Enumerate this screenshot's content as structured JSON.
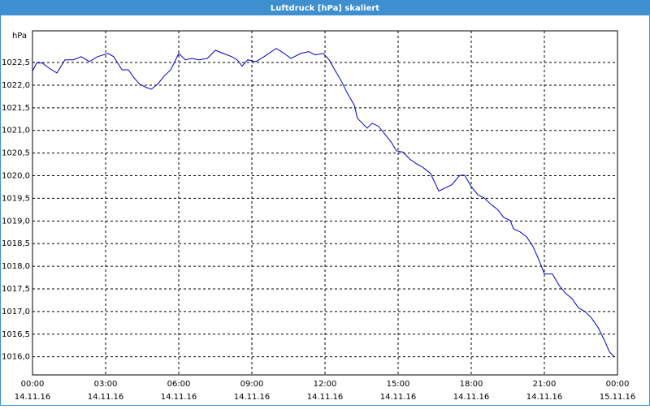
{
  "chart_data": {
    "type": "line",
    "title": "Luftdruck [hPa] skaliert",
    "ylabel": "hPa",
    "xlim": [
      0,
      24
    ],
    "ylim": [
      1015.6,
      1023.2
    ],
    "xticks": [
      {
        "value": 0,
        "label": "00:00"
      },
      {
        "value": 3,
        "label": "03:00"
      },
      {
        "value": 6,
        "label": "06:00"
      },
      {
        "value": 9,
        "label": "09:00"
      },
      {
        "value": 12,
        "label": "12:00"
      },
      {
        "value": 15,
        "label": "15:00"
      },
      {
        "value": 18,
        "label": "18:00"
      },
      {
        "value": 21,
        "label": "21:00"
      },
      {
        "value": 24,
        "label": "00:00"
      }
    ],
    "xtick_dates": [
      "14.11.16",
      "14.11.16",
      "14.11.16",
      "14.11.16",
      "14.11.16",
      "14.11.16",
      "14.11.16",
      "14.11.16",
      "15.11.16"
    ],
    "yticks": [
      {
        "value": 1016,
        "label": "1016,0"
      },
      {
        "value": 1016.5,
        "label": "1016,5"
      },
      {
        "value": 1017,
        "label": "1017,0"
      },
      {
        "value": 1017.5,
        "label": "1017,5"
      },
      {
        "value": 1018,
        "label": "1018,0"
      },
      {
        "value": 1018.5,
        "label": "1018,5"
      },
      {
        "value": 1019,
        "label": "1019,0"
      },
      {
        "value": 1019.5,
        "label": "1019,5"
      },
      {
        "value": 1020,
        "label": "1020,0"
      },
      {
        "value": 1020.5,
        "label": "1020,5"
      },
      {
        "value": 1021,
        "label": "1021,0"
      },
      {
        "value": 1021.5,
        "label": "1021,5"
      },
      {
        "value": 1022,
        "label": "1022,0"
      },
      {
        "value": 1022.5,
        "label": "1022,5"
      }
    ],
    "grid": true,
    "series": [
      {
        "color": "#0000c8",
        "x": [
          0,
          0.17,
          0.4,
          0.67,
          1,
          1.33,
          1.67,
          2,
          2.33,
          2.67,
          3.1,
          3.33,
          3.67,
          3.93,
          4.17,
          4.4,
          4.67,
          4.87,
          5.13,
          5.4,
          5.67,
          6,
          6.27,
          6.53,
          6.83,
          7.17,
          7.5,
          7.83,
          8.17,
          8.4,
          8.6,
          8.83,
          9.17,
          9.5,
          10,
          10.33,
          10.6,
          11,
          11.33,
          11.6,
          11.93,
          12.17,
          12.4,
          12.67,
          12.93,
          13.2,
          13.33,
          13.73,
          13.93,
          14.2,
          14.47,
          14.73,
          14.93,
          15.2,
          15.47,
          15.73,
          16,
          16.33,
          16.67,
          16.93,
          17.2,
          17.53,
          17.73,
          18,
          18.27,
          18.53,
          18.8,
          19.07,
          19.33,
          19.6,
          19.73,
          20,
          20.27,
          20.53,
          20.8,
          21,
          21.33,
          21.6,
          21.87,
          22.13,
          22.4,
          22.67,
          22.93,
          23.2,
          23.47,
          23.67,
          23.87
        ],
        "values": [
          1022.31,
          1022.49,
          1022.49,
          1022.38,
          1022.27,
          1022.56,
          1022.56,
          1022.63,
          1022.52,
          1022.63,
          1022.7,
          1022.63,
          1022.34,
          1022.34,
          1022.16,
          1022.02,
          1021.95,
          1021.91,
          1022.02,
          1022.2,
          1022.34,
          1022.7,
          1022.56,
          1022.59,
          1022.56,
          1022.59,
          1022.77,
          1022.7,
          1022.63,
          1022.56,
          1022.42,
          1022.56,
          1022.52,
          1022.63,
          1022.81,
          1022.7,
          1022.59,
          1022.7,
          1022.74,
          1022.67,
          1022.7,
          1022.56,
          1022.34,
          1022.09,
          1021.81,
          1021.56,
          1021.27,
          1021.05,
          1021.16,
          1021.09,
          1020.91,
          1020.73,
          1020.55,
          1020.52,
          1020.37,
          1020.27,
          1020.19,
          1020.05,
          1019.66,
          1019.73,
          1019.8,
          1020.01,
          1020.01,
          1019.76,
          1019.58,
          1019.51,
          1019.37,
          1019.26,
          1019.08,
          1019.01,
          1018.83,
          1018.76,
          1018.65,
          1018.44,
          1018.11,
          1017.83,
          1017.83,
          1017.58,
          1017.4,
          1017.29,
          1017.08,
          1017,
          1016.86,
          1016.65,
          1016.36,
          1016.11,
          1016
        ]
      }
    ]
  }
}
